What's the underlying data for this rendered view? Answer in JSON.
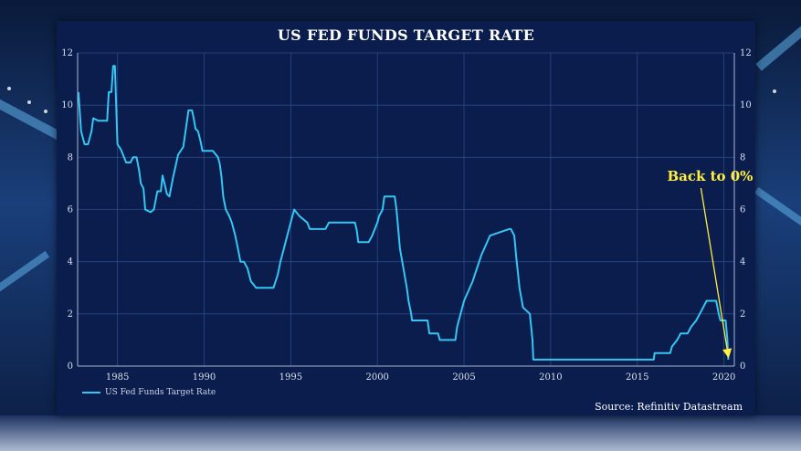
{
  "chart_data": {
    "type": "line",
    "title": "US FED FUNDS TARGET RATE",
    "xlabel": "",
    "ylabel": "",
    "xlim": [
      1982.7,
      2020.6
    ],
    "ylim": [
      0,
      12
    ],
    "x_ticks": [
      1985,
      1990,
      1995,
      2000,
      2005,
      2010,
      2015,
      2020
    ],
    "y_ticks": [
      0,
      2,
      4,
      6,
      8,
      10,
      12
    ],
    "grid": true,
    "legend_position": "bottom-left",
    "series": [
      {
        "name": "US Fed Funds Target Rate",
        "color": "#34c6f4",
        "x": [
          1982.75,
          1982.9,
          1983.1,
          1983.3,
          1983.5,
          1983.6,
          1983.9,
          1984.2,
          1984.4,
          1984.5,
          1984.65,
          1984.75,
          1984.85,
          1985.0,
          1985.2,
          1985.5,
          1985.75,
          1985.9,
          1986.1,
          1986.25,
          1986.35,
          1986.5,
          1986.6,
          1986.9,
          1987.1,
          1987.3,
          1987.5,
          1987.6,
          1987.75,
          1987.85,
          1988.0,
          1988.2,
          1988.5,
          1988.8,
          1989.1,
          1989.3,
          1989.4,
          1989.5,
          1989.65,
          1989.8,
          1989.9,
          1990.0,
          1990.5,
          1990.8,
          1990.9,
          1991.0,
          1991.1,
          1991.25,
          1991.45,
          1991.6,
          1991.8,
          1991.95,
          1992.1,
          1992.3,
          1992.5,
          1992.7,
          1993.0,
          1993.5,
          1994.0,
          1994.25,
          1994.4,
          1994.6,
          1994.8,
          1995.0,
          1995.2,
          1995.5,
          1995.95,
          1996.1,
          1996.5,
          1997.0,
          1997.2,
          1998.0,
          1998.7,
          1998.8,
          1998.9,
          1999.5,
          1999.7,
          2000.0,
          2000.1,
          2000.3,
          2000.4,
          2000.5,
          2001.0,
          2001.1,
          2001.3,
          2001.5,
          2001.7,
          2001.8,
          2001.95,
          2002.0,
          2002.9,
          2003.0,
          2003.5,
          2003.6,
          2004.5,
          2004.6,
          2004.8,
          2005.0,
          2005.5,
          2006.0,
          2006.5,
          2007.6,
          2007.7,
          2007.9,
          2008.0,
          2008.2,
          2008.4,
          2008.8,
          2008.95,
          2009.0,
          2015.95,
          2016.0,
          2016.9,
          2017.0,
          2017.3,
          2017.5,
          2017.9,
          2018.1,
          2018.4,
          2018.6,
          2018.8,
          2019.0,
          2019.55,
          2019.7,
          2019.8,
          2020.1,
          2020.2,
          2020.25
        ],
        "y": [
          10.5,
          9.0,
          8.5,
          8.5,
          9.0,
          9.5,
          9.4,
          9.4,
          9.4,
          10.5,
          10.5,
          11.5,
          11.5,
          8.5,
          8.3,
          7.8,
          7.8,
          8.0,
          8.0,
          7.5,
          7.0,
          6.8,
          6.0,
          5.9,
          6.0,
          6.7,
          6.7,
          7.3,
          6.9,
          6.6,
          6.5,
          7.2,
          8.1,
          8.4,
          9.8,
          9.8,
          9.5,
          9.1,
          9.0,
          8.6,
          8.25,
          8.25,
          8.25,
          8.0,
          7.75,
          7.25,
          6.5,
          6.0,
          5.75,
          5.5,
          5.0,
          4.5,
          4.0,
          4.0,
          3.75,
          3.25,
          3.0,
          3.0,
          3.0,
          3.5,
          4.0,
          4.5,
          5.0,
          5.5,
          6.0,
          5.75,
          5.5,
          5.25,
          5.25,
          5.25,
          5.5,
          5.5,
          5.5,
          5.25,
          4.75,
          4.75,
          5.0,
          5.5,
          5.75,
          6.0,
          6.5,
          6.5,
          6.5,
          6.0,
          4.5,
          3.75,
          3.0,
          2.5,
          2.0,
          1.75,
          1.75,
          1.25,
          1.25,
          1.0,
          1.0,
          1.5,
          2.0,
          2.5,
          3.25,
          4.25,
          5.0,
          5.25,
          5.25,
          5.0,
          4.25,
          3.0,
          2.25,
          2.0,
          1.0,
          0.25,
          0.25,
          0.5,
          0.5,
          0.75,
          1.0,
          1.25,
          1.25,
          1.5,
          1.75,
          2.0,
          2.25,
          2.5,
          2.5,
          2.0,
          1.75,
          1.75,
          1.0,
          0.25
        ]
      }
    ],
    "annotations": [
      {
        "text": "Back to 0%",
        "x": 2019.2,
        "y": 7.1,
        "arrow_to_x": 2020.25,
        "arrow_to_y": 0.25,
        "color": "#ffee44"
      }
    ],
    "source": "Source: Refinitiv Datastream"
  }
}
